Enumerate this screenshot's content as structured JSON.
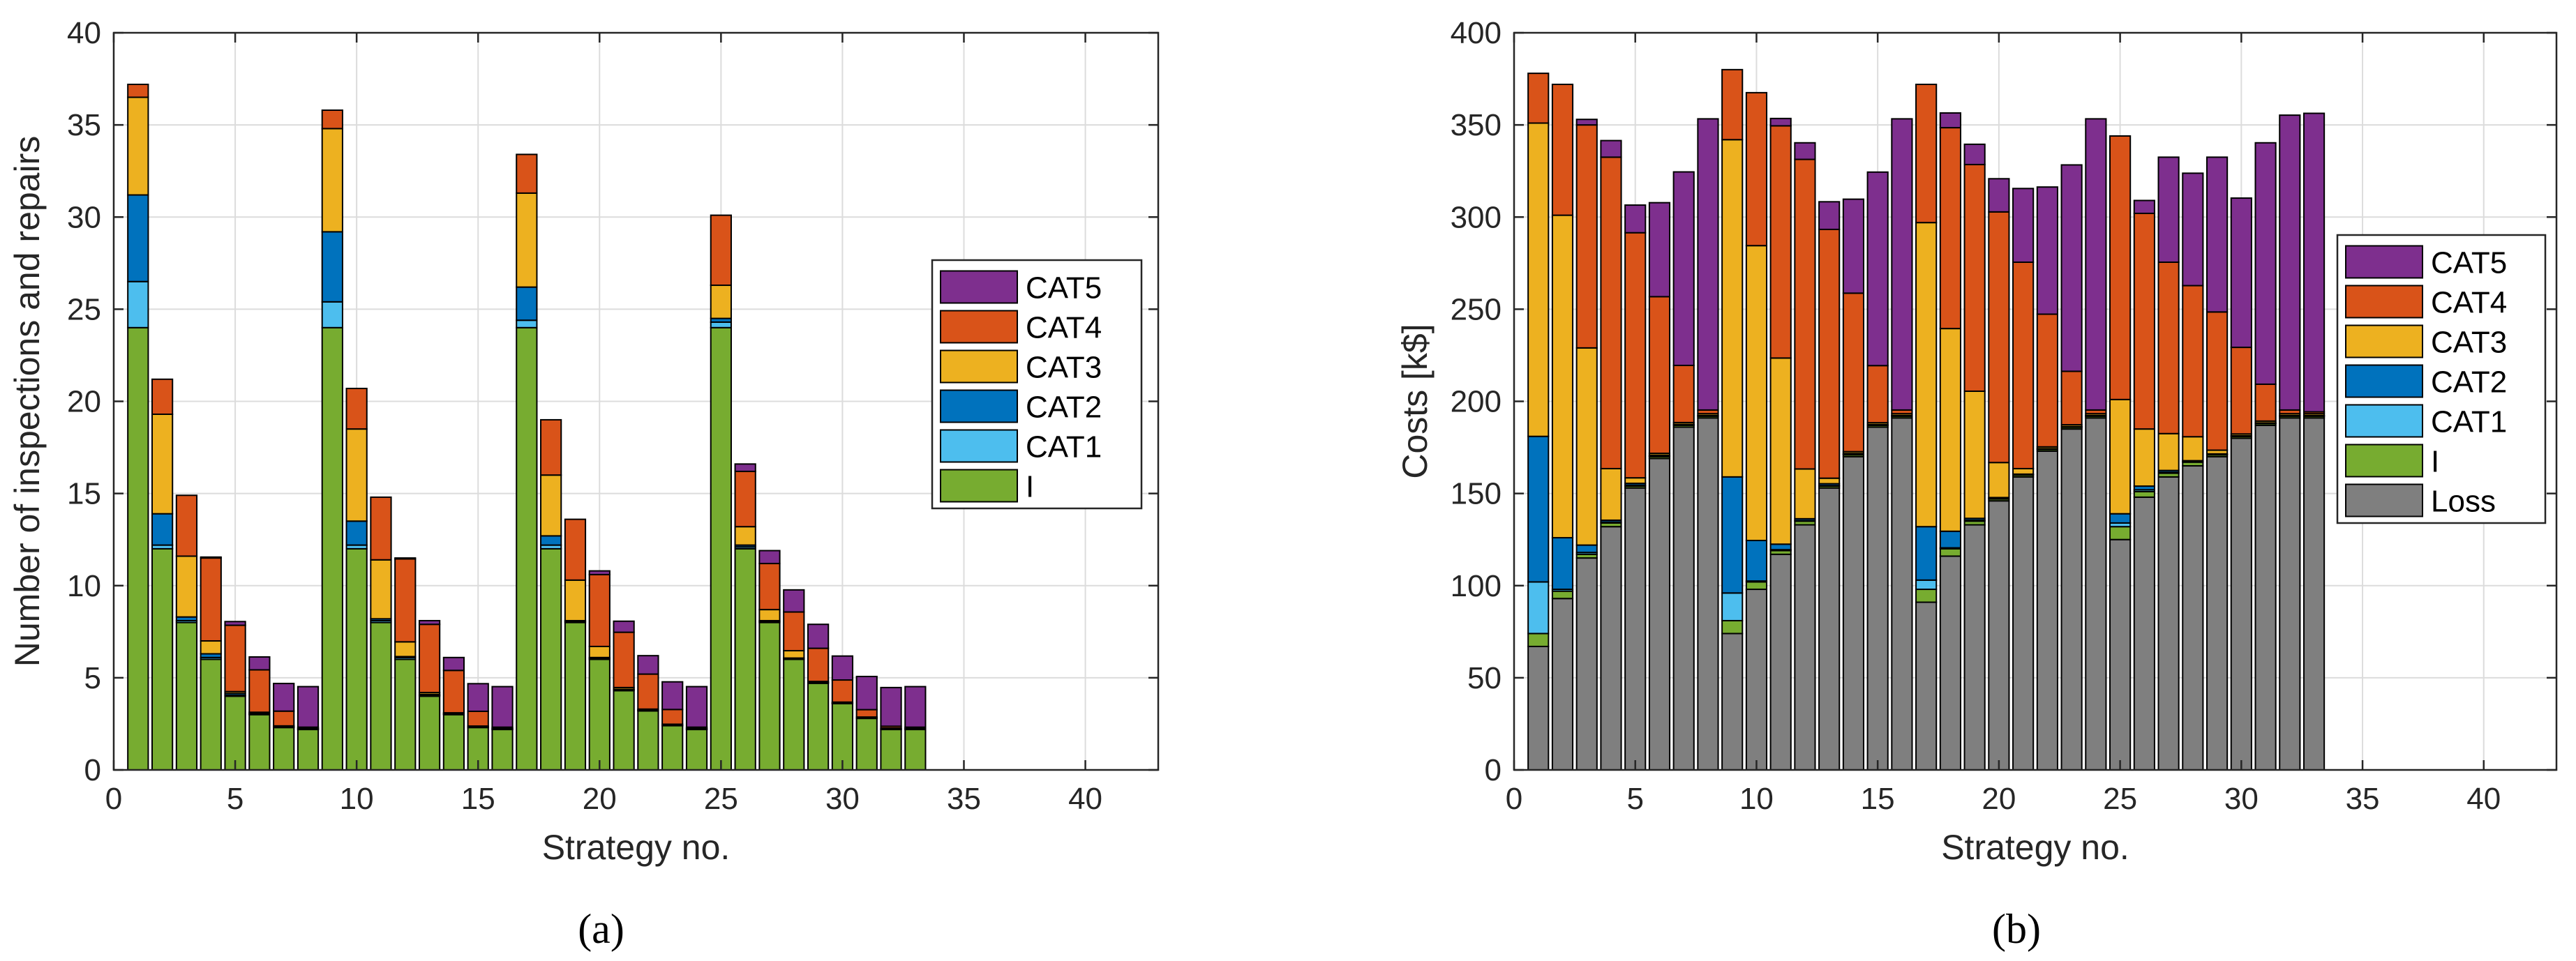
{
  "colors": {
    "Loss": "#7f7f7f",
    "I": "#77ac30",
    "CAT1": "#4dbeee",
    "CAT2": "#0072bd",
    "CAT3": "#edb120",
    "CAT4": "#d95319",
    "CAT5": "#7e2f8e"
  },
  "chart_data": [
    {
      "type": "bar",
      "stacked": true,
      "panel_label": "(a)",
      "xlabel": "Strategy no.",
      "ylabel": "Number of inspections and repairs",
      "xlim": [
        0,
        43
      ],
      "ylim": [
        0,
        40
      ],
      "xticks": [
        0,
        5,
        10,
        15,
        20,
        25,
        30,
        35,
        40
      ],
      "yticks": [
        0,
        5,
        10,
        15,
        20,
        25,
        30,
        35,
        40
      ],
      "grid": true,
      "legend_position": "right",
      "legend": [
        "CAT5",
        "CAT4",
        "CAT3",
        "CAT2",
        "CAT1",
        "I"
      ],
      "categories": [
        1,
        2,
        3,
        4,
        5,
        6,
        7,
        8,
        9,
        10,
        11,
        12,
        13,
        14,
        15,
        16,
        17,
        18,
        19,
        20,
        21,
        22,
        23,
        24,
        25,
        26,
        27,
        28,
        29,
        30,
        31,
        32,
        33
      ],
      "series": [
        {
          "name": "I",
          "values": [
            24,
            12,
            8,
            6,
            4,
            3,
            2.3,
            2.2,
            24,
            12,
            8,
            6,
            4,
            3,
            2.3,
            2.2,
            24,
            12,
            8,
            6,
            4.3,
            3.2,
            2.4,
            2.2,
            24,
            12,
            8,
            6,
            4.7,
            3.6,
            2.8,
            2.2,
            2.2
          ]
        },
        {
          "name": "CAT1",
          "values": [
            2.5,
            0.2,
            0.1,
            0.1,
            0.05,
            0.03,
            0.02,
            0.01,
            1.4,
            0.2,
            0.1,
            0.1,
            0.05,
            0.03,
            0.02,
            0.01,
            0.4,
            0.2,
            0.05,
            0.05,
            0.05,
            0.03,
            0.02,
            0.01,
            0.3,
            0.1,
            0.05,
            0.05,
            0.03,
            0.02,
            0.01,
            0.01,
            0.01
          ]
        },
        {
          "name": "CAT2",
          "values": [
            4.7,
            1.7,
            0.2,
            0.2,
            0.1,
            0.05,
            0.02,
            0.01,
            3.8,
            1.3,
            0.1,
            0.05,
            0.05,
            0.02,
            0.01,
            0.01,
            1.8,
            0.5,
            0.05,
            0.05,
            0.02,
            0.02,
            0.01,
            0.01,
            0.2,
            0.1,
            0.05,
            0.02,
            0.02,
            0.01,
            0.01,
            0.01,
            0.01
          ]
        },
        {
          "name": "CAT3",
          "values": [
            5.3,
            5.4,
            3.3,
            0.7,
            0.1,
            0.05,
            0.05,
            0.05,
            5.6,
            5.0,
            3.2,
            0.8,
            0.1,
            0.05,
            0.05,
            0.05,
            5.1,
            3.3,
            2.2,
            0.6,
            0.1,
            0.05,
            0.05,
            0.05,
            1.8,
            1.0,
            0.6,
            0.4,
            0.05,
            0.05,
            0.05,
            0.05,
            0.05
          ]
        },
        {
          "name": "CAT4",
          "values": [
            0.7,
            1.9,
            3.3,
            4.5,
            3.6,
            2.3,
            0.8,
            0.05,
            1.0,
            2.2,
            3.4,
            4.5,
            3.7,
            2.3,
            0.8,
            0.05,
            2.1,
            3.0,
            3.3,
            3.9,
            3.0,
            1.9,
            0.8,
            0.05,
            3.8,
            3.0,
            2.5,
            2.1,
            1.8,
            1.2,
            0.4,
            0.1,
            0.05
          ]
        },
        {
          "name": "CAT5",
          "values": [
            0,
            0,
            0,
            0.05,
            0.2,
            0.7,
            1.5,
            2.2,
            0,
            0,
            0,
            0.05,
            0.2,
            0.7,
            1.5,
            2.2,
            0,
            0,
            0,
            0.2,
            0.6,
            1.0,
            1.5,
            2.2,
            0,
            0.4,
            0.7,
            1.2,
            1.3,
            1.3,
            1.8,
            2.1,
            2.2
          ]
        }
      ]
    },
    {
      "type": "bar",
      "stacked": true,
      "panel_label": "(b)",
      "xlabel": "Strategy no.",
      "ylabel": "Costs [k$]",
      "xlim": [
        0,
        43
      ],
      "ylim": [
        0,
        400
      ],
      "xticks": [
        0,
        5,
        10,
        15,
        20,
        25,
        30,
        35,
        40
      ],
      "yticks": [
        0,
        50,
        100,
        150,
        200,
        250,
        300,
        350,
        400
      ],
      "grid": true,
      "legend_position": "right",
      "legend": [
        "CAT5",
        "CAT4",
        "CAT3",
        "CAT2",
        "CAT1",
        "I",
        "Loss"
      ],
      "categories": [
        1,
        2,
        3,
        4,
        5,
        6,
        7,
        8,
        9,
        10,
        11,
        12,
        13,
        14,
        15,
        16,
        17,
        18,
        19,
        20,
        21,
        22,
        23,
        24,
        25,
        26,
        27,
        28,
        29,
        30,
        31,
        32,
        33
      ],
      "series": [
        {
          "name": "Loss",
          "values": [
            67,
            93,
            115,
            132,
            153,
            169,
            186,
            191,
            74,
            98,
            117,
            133,
            153,
            170,
            186,
            191,
            91,
            116,
            133,
            146,
            159,
            173,
            185,
            191,
            125,
            148,
            159,
            165,
            170,
            180,
            187,
            191,
            191
          ]
        },
        {
          "name": "I",
          "values": [
            7,
            4,
            2,
            2,
            1,
            1,
            1,
            1,
            7,
            4,
            2,
            2,
            1,
            1,
            1,
            1,
            7,
            4,
            2,
            1,
            1,
            1,
            1,
            1,
            7,
            3,
            2,
            2,
            1,
            1,
            1,
            1,
            1
          ]
        },
        {
          "name": "CAT1",
          "values": [
            28,
            1,
            1,
            0.5,
            0.5,
            0.3,
            0.2,
            0.1,
            15,
            0.5,
            0.5,
            0.3,
            0.3,
            0.2,
            0.1,
            0.1,
            5,
            0.5,
            0.5,
            0.3,
            0.2,
            0.1,
            0.1,
            0.1,
            2,
            1,
            0.5,
            0.3,
            0.2,
            0.1,
            0.1,
            0.1,
            0.1
          ]
        },
        {
          "name": "CAT2",
          "values": [
            79,
            28,
            4,
            1,
            1,
            0.5,
            0.3,
            0.2,
            63,
            22,
            3,
            1,
            1,
            0.5,
            0.3,
            0.2,
            29,
            9,
            1,
            0.5,
            0.3,
            0.2,
            0.2,
            0.2,
            5,
            2,
            1,
            0.5,
            0.3,
            0.2,
            0.2,
            0.2,
            0.2
          ]
        },
        {
          "name": "CAT3",
          "values": [
            170,
            175,
            107,
            28,
            3,
            1,
            1,
            1,
            183,
            160,
            101,
            27,
            3,
            1,
            1,
            1,
            165,
            110,
            69,
            19,
            3,
            1,
            1,
            1,
            62,
            31,
            20,
            13,
            2,
            1,
            1,
            1,
            1
          ]
        },
        {
          "name": "CAT4",
          "values": [
            27,
            71,
            121,
            169,
            133,
            85,
            31,
            2,
            38,
            83,
            126,
            168,
            135,
            86,
            31,
            2,
            75,
            109,
            123,
            136,
            112,
            72,
            29,
            2,
            143,
            117,
            93,
            82,
            75,
            47,
            20,
            2,
            1
          ]
        },
        {
          "name": "CAT5",
          "values": [
            0,
            0,
            3,
            9,
            15,
            51,
            105,
            158,
            0,
            0,
            4,
            9,
            15,
            51,
            105,
            158,
            0,
            8,
            11,
            18,
            40,
            69,
            112,
            158,
            0,
            7,
            57,
            61,
            84,
            81,
            131,
            160,
            162
          ]
        }
      ]
    }
  ]
}
